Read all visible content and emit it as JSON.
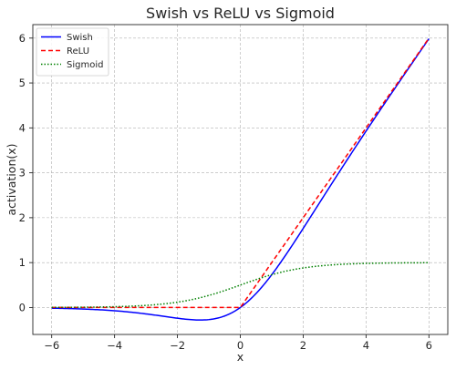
{
  "chart_data": {
    "type": "line",
    "title": "Swish vs ReLU vs Sigmoid",
    "xlabel": "x",
    "ylabel": "activation(x)",
    "xlim": [
      -6.6,
      6.6
    ],
    "ylim": [
      -0.6,
      6.3
    ],
    "grid": true,
    "legend_position": "top-left",
    "x_ticks": [
      -6,
      -4,
      -2,
      0,
      2,
      4,
      6
    ],
    "y_ticks": [
      0,
      1,
      2,
      3,
      4,
      5,
      6
    ],
    "x_range": [
      -6,
      6
    ],
    "series": [
      {
        "name": "Swish",
        "function": "x * sigmoid(x)",
        "color": "#0000ff",
        "style": "solid"
      },
      {
        "name": "ReLU",
        "function": "max(0, x)",
        "color": "#ff0000",
        "style": "dashed"
      },
      {
        "name": "Sigmoid",
        "function": "1 / (1 + exp(-x))",
        "color": "#008000",
        "style": "dotted"
      }
    ]
  }
}
